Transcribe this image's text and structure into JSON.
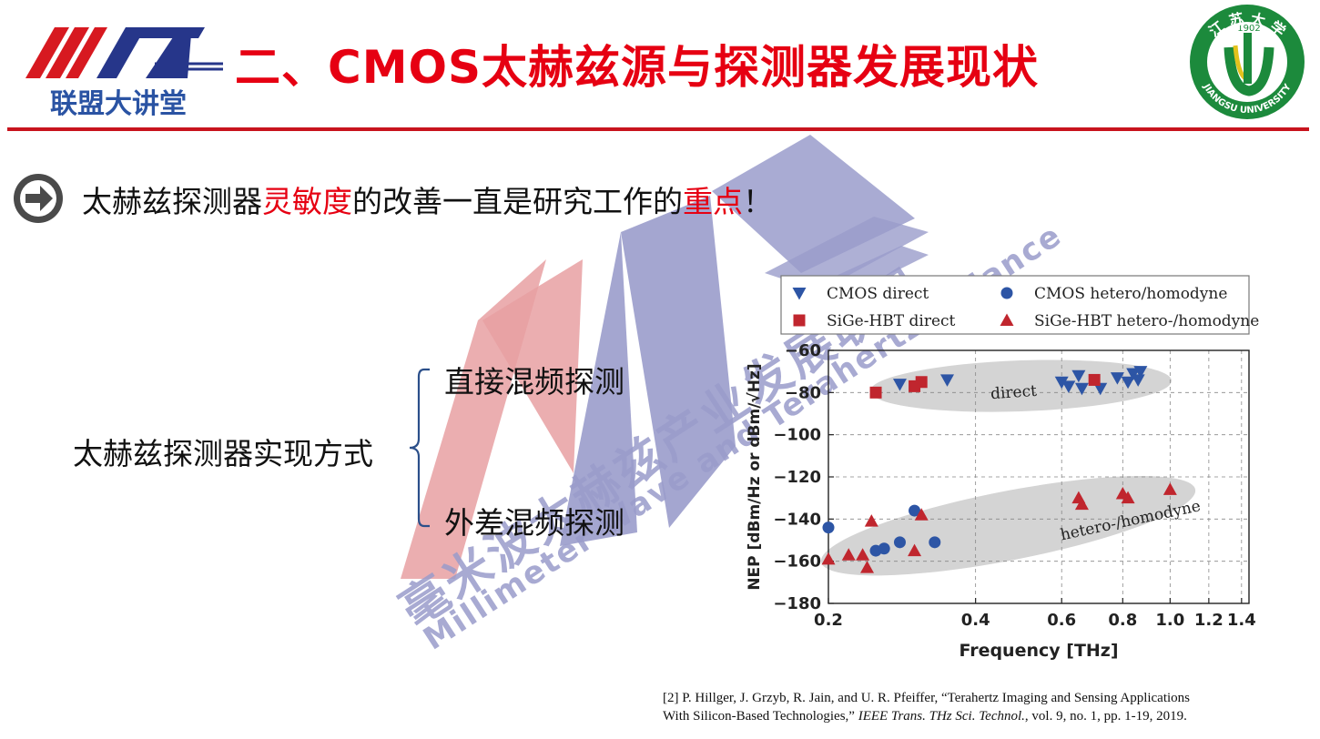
{
  "header": {
    "logo_left_text": "联盟大讲堂",
    "title": "二、CMOS太赫兹源与探测器发展现状",
    "logo_right_year": "1902",
    "logo_right_arc_top": "江 苏 大 学",
    "logo_right_arc_bottom": "JIANGSU UNIVERSITY",
    "accent_color": "#e60012"
  },
  "bullet": {
    "icon": "arrow-right-circle-icon",
    "seg1": "太赫兹探测器",
    "seg2": "灵敏度",
    "seg3": "的改善一直是研究工作的",
    "seg4": "重点",
    "seg5": "！"
  },
  "classification": {
    "root": "太赫兹探测器实现方式",
    "branch_a": "直接混频探测",
    "branch_b": "外差混频探测"
  },
  "watermark": {
    "cn": "毫米波太赫兹产业发展联盟",
    "en": "Millimeter Wave and Terahertz Alliance"
  },
  "chart_data": {
    "type": "scatter",
    "xlabel": "Frequency [THz]",
    "ylabel": "NEP [dBm/Hz or dBm/√Hz]",
    "xscale": "log",
    "xlim": [
      0.2,
      1.45
    ],
    "ylim": [
      -180,
      -60
    ],
    "xticks": [
      0.2,
      0.4,
      0.6,
      0.8,
      1.0,
      1.2,
      1.4
    ],
    "xtick_labels": [
      "0.2",
      "0.4",
      "0.6",
      "0.8",
      "1.0",
      "1.2",
      "1.4"
    ],
    "yticks": [
      -60,
      -80,
      -100,
      -120,
      -140,
      -160,
      -180
    ],
    "ytick_labels": [
      "−60",
      "−80",
      "−100",
      "−120",
      "−140",
      "−160",
      "−180"
    ],
    "grid": true,
    "legend_position": "top",
    "annotations": [
      {
        "text": "direct",
        "x": 0.43,
        "y": -83
      },
      {
        "text": "hetero-/homodyne",
        "x": 0.6,
        "y": -150
      }
    ],
    "series": [
      {
        "name": "CMOS direct",
        "marker": "triangle-down",
        "color": "#2d55a5",
        "points": [
          [
            0.28,
            -76
          ],
          [
            0.35,
            -74
          ],
          [
            0.6,
            -75
          ],
          [
            0.62,
            -77
          ],
          [
            0.65,
            -72
          ],
          [
            0.66,
            -78
          ],
          [
            0.72,
            -78
          ],
          [
            0.78,
            -73
          ],
          [
            0.82,
            -75
          ],
          [
            0.84,
            -71
          ],
          [
            0.86,
            -74
          ],
          [
            0.87,
            -70
          ]
        ]
      },
      {
        "name": "CMOS hetero/homodyne",
        "marker": "circle",
        "color": "#2d55a5",
        "points": [
          [
            0.2,
            -144
          ],
          [
            0.25,
            -155
          ],
          [
            0.26,
            -154
          ],
          [
            0.28,
            -151
          ],
          [
            0.3,
            -136
          ],
          [
            0.33,
            -151
          ]
        ]
      },
      {
        "name": "SiGe-HBT direct",
        "marker": "square",
        "color": "#c0262e",
        "points": [
          [
            0.25,
            -80
          ],
          [
            0.3,
            -77
          ],
          [
            0.31,
            -75
          ],
          [
            0.7,
            -74
          ]
        ]
      },
      {
        "name": "SiGe-HBT hetero-/homodyne",
        "marker": "triangle-up",
        "color": "#c0262e",
        "points": [
          [
            0.2,
            -159
          ],
          [
            0.22,
            -157
          ],
          [
            0.235,
            -157
          ],
          [
            0.24,
            -163
          ],
          [
            0.245,
            -141
          ],
          [
            0.3,
            -155
          ],
          [
            0.31,
            -138
          ],
          [
            0.65,
            -130
          ],
          [
            0.66,
            -133
          ],
          [
            0.8,
            -128
          ],
          [
            0.82,
            -130
          ],
          [
            1.0,
            -126
          ]
        ]
      }
    ]
  },
  "reference": {
    "line1": "[2] P. Hillger, J. Grzyb, R. Jain, and U. R. Pfeiffer, “Terahertz Imaging and Sensing Applications",
    "line2_pre": "With Silicon-Based Technologies,” ",
    "line2_journal": "IEEE Trans. THz Sci. Technol.",
    "line2_post": ", vol.  9, no.  1, pp.  1-19, 2019."
  }
}
